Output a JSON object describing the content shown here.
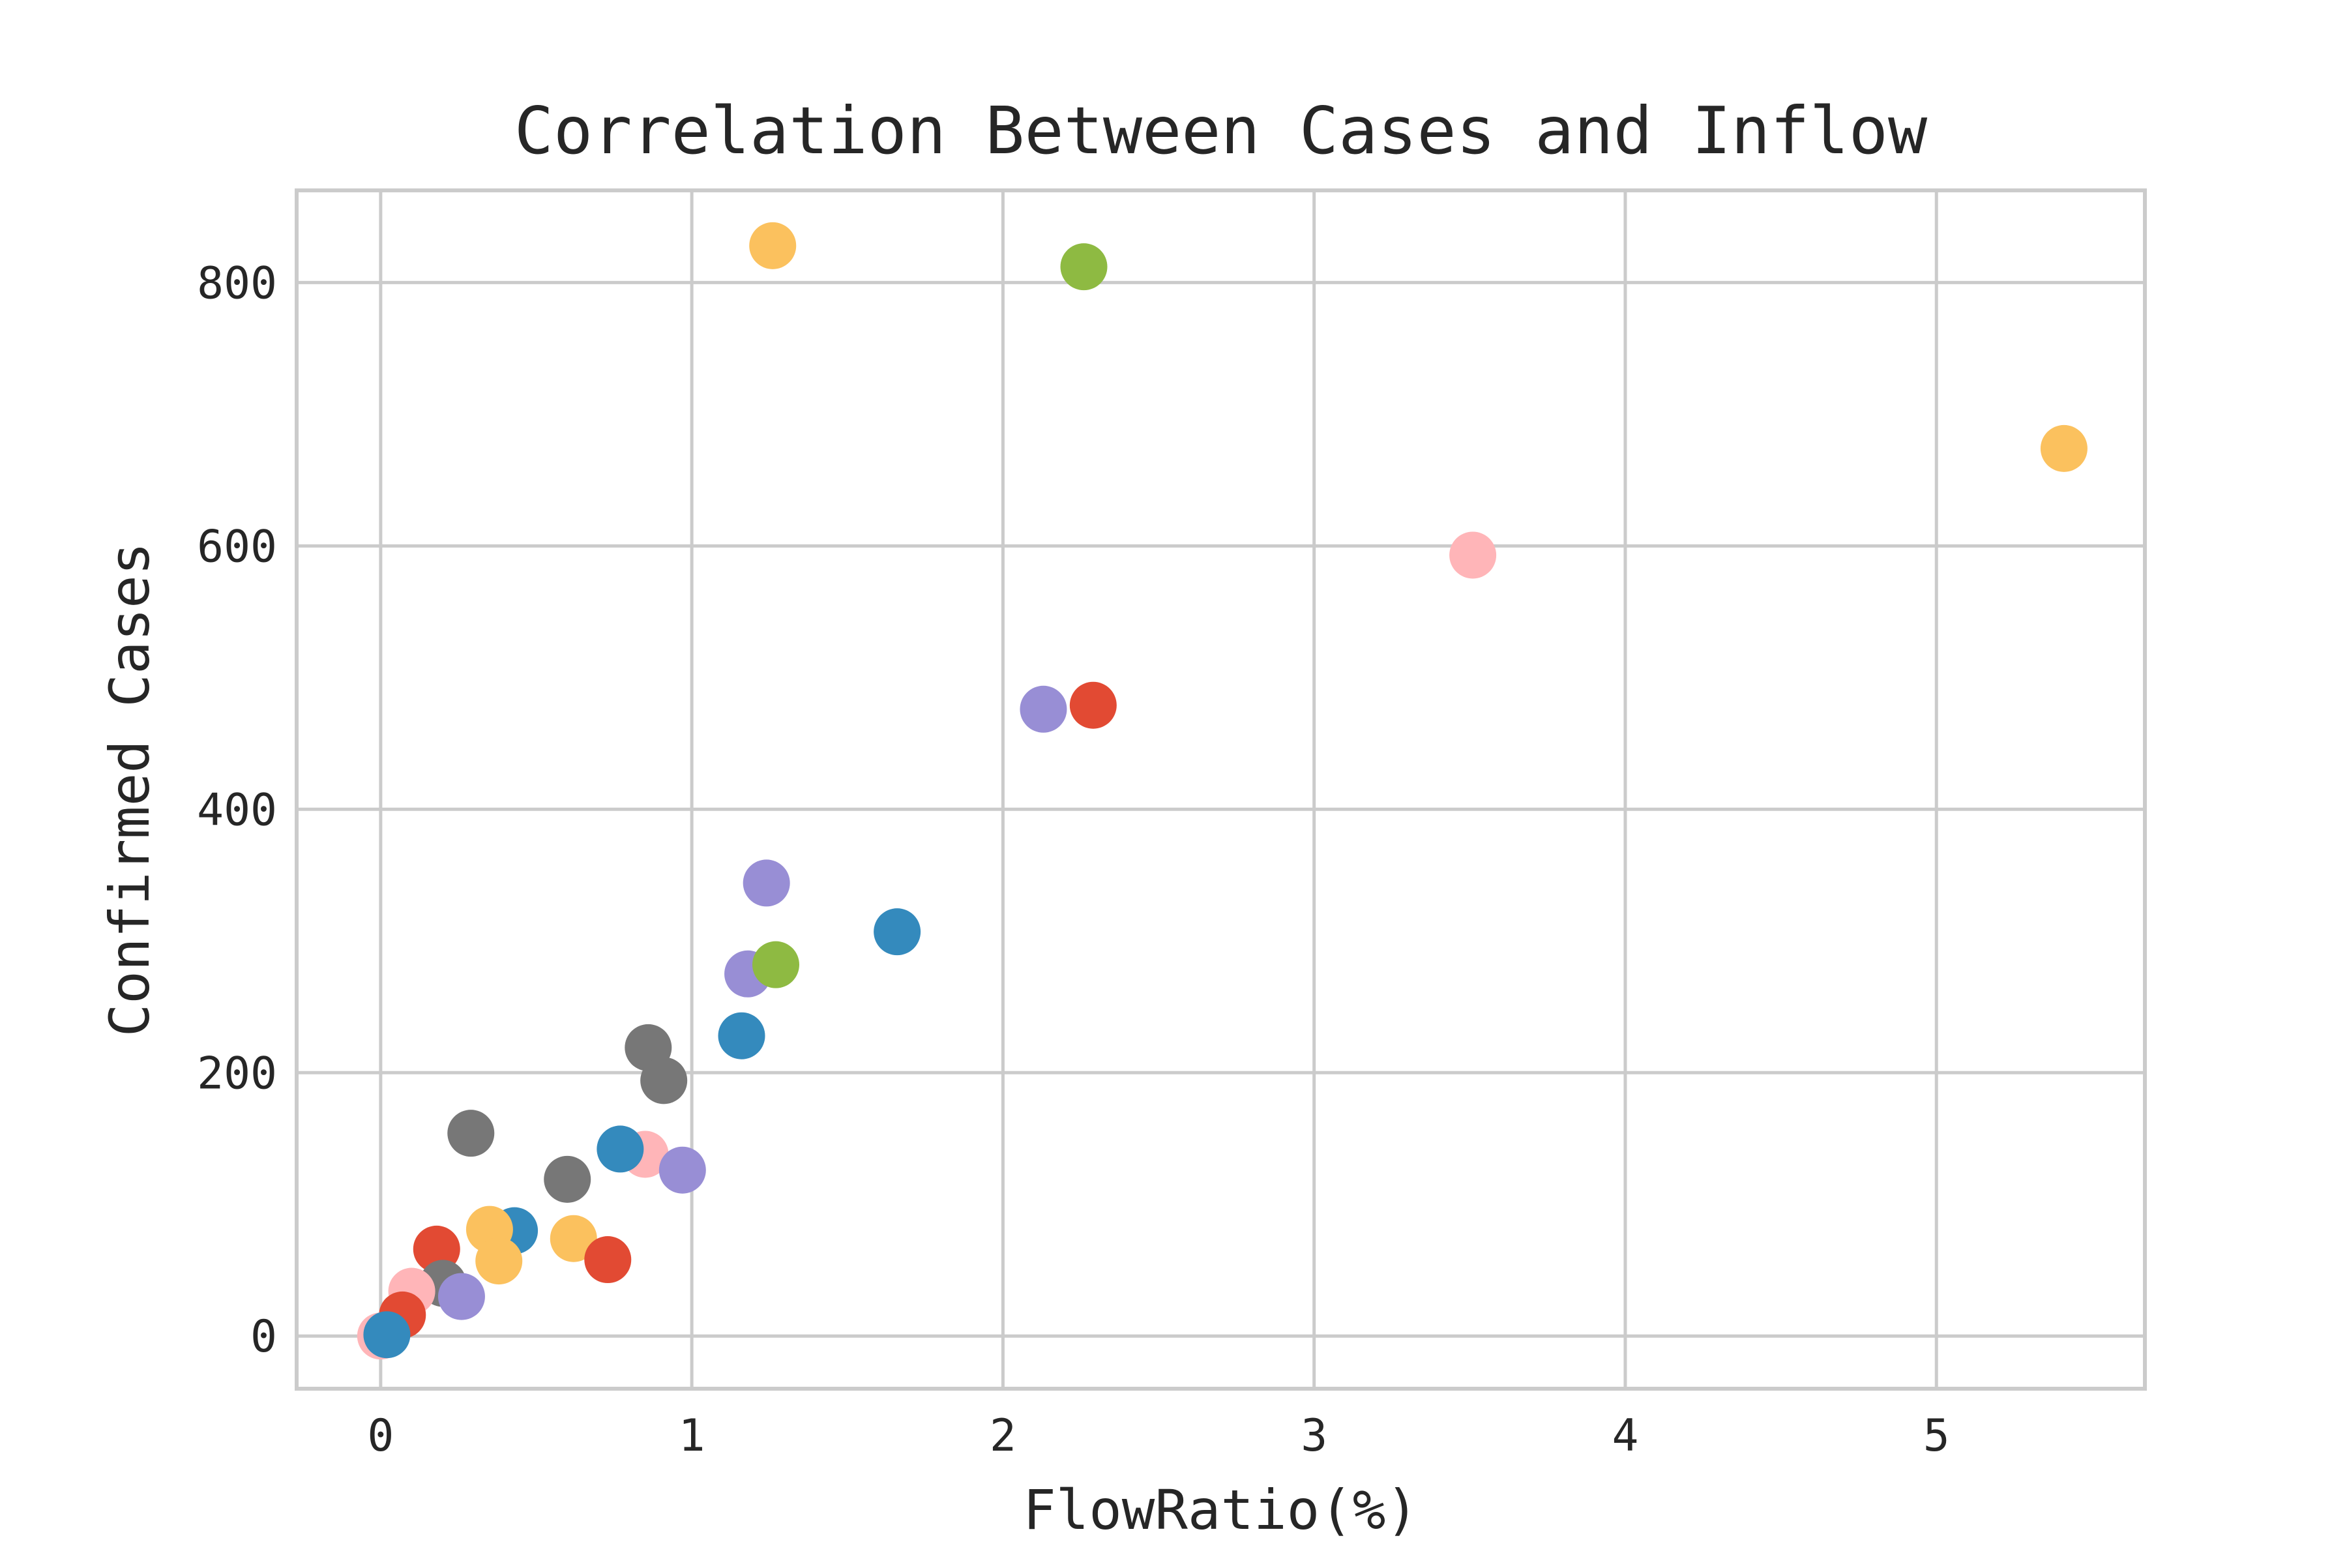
{
  "chart_data": {
    "type": "scatter",
    "title": "Correlation Between Cases and Inflow",
    "xlabel": "FlowRatio(%)",
    "ylabel": "Confirmed Cases",
    "xlim": [
      -0.27,
      5.67
    ],
    "ylim": [
      -40,
      870
    ],
    "xticks": [
      0,
      1,
      2,
      3,
      4,
      5
    ],
    "yticks": [
      0,
      200,
      400,
      600,
      800
    ],
    "grid": true,
    "colors": {
      "red": "#E24A33",
      "blue": "#348ABD",
      "purple": "#988ED5",
      "gray": "#777777",
      "yellow": "#FBC15E",
      "green": "#8EBA42",
      "pink": "#FFB5B8",
      "grid": "#cbcbcb",
      "frame": "#cbcbcb",
      "text": "#262626"
    },
    "points": [
      {
        "x": 1.26,
        "y": 828,
        "color": "yellow"
      },
      {
        "x": 2.26,
        "y": 812,
        "color": "green"
      },
      {
        "x": 5.41,
        "y": 674,
        "color": "yellow"
      },
      {
        "x": 3.51,
        "y": 593,
        "color": "pink"
      },
      {
        "x": 2.13,
        "y": 476,
        "color": "purple"
      },
      {
        "x": 2.29,
        "y": 479,
        "color": "red"
      },
      {
        "x": 1.24,
        "y": 344,
        "color": "purple"
      },
      {
        "x": 1.66,
        "y": 307,
        "color": "blue"
      },
      {
        "x": 1.18,
        "y": 275,
        "color": "purple"
      },
      {
        "x": 1.27,
        "y": 282,
        "color": "green"
      },
      {
        "x": 1.16,
        "y": 228,
        "color": "blue"
      },
      {
        "x": 0.86,
        "y": 219,
        "color": "gray"
      },
      {
        "x": 0.91,
        "y": 194,
        "color": "gray"
      },
      {
        "x": 0.29,
        "y": 154,
        "color": "gray"
      },
      {
        "x": 0.85,
        "y": 138,
        "color": "pink"
      },
      {
        "x": 0.77,
        "y": 142,
        "color": "blue"
      },
      {
        "x": 0.97,
        "y": 126,
        "color": "purple"
      },
      {
        "x": 0.6,
        "y": 119,
        "color": "gray"
      },
      {
        "x": 0.43,
        "y": 80,
        "color": "blue"
      },
      {
        "x": 0.35,
        "y": 81,
        "color": "yellow"
      },
      {
        "x": 0.38,
        "y": 57,
        "color": "yellow"
      },
      {
        "x": 0.62,
        "y": 74,
        "color": "yellow"
      },
      {
        "x": 0.73,
        "y": 58,
        "color": "red"
      },
      {
        "x": 0.18,
        "y": 66,
        "color": "red"
      },
      {
        "x": 0.2,
        "y": 40,
        "color": "gray"
      },
      {
        "x": 0.1,
        "y": 34,
        "color": "pink"
      },
      {
        "x": 0.26,
        "y": 30,
        "color": "purple"
      },
      {
        "x": 0.07,
        "y": 16,
        "color": "red"
      },
      {
        "x": 0.0,
        "y": 0,
        "color": "pink"
      },
      {
        "x": 0.02,
        "y": 1,
        "color": "blue"
      }
    ]
  }
}
